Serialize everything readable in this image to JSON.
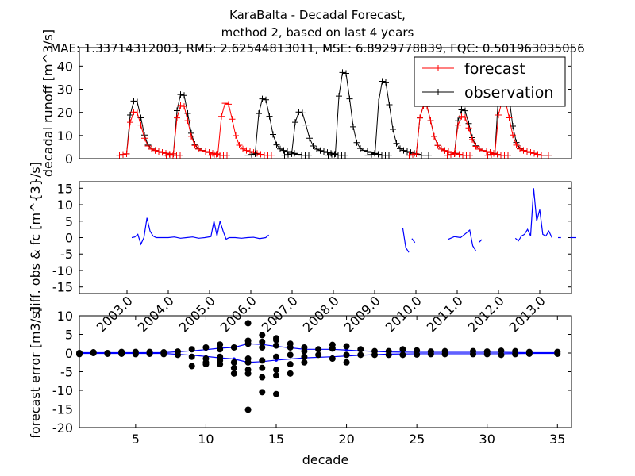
{
  "figure": {
    "title_lines": [
      "KaraBalta  - Decadal Forecast,",
      "method 2, based on last 4 years",
      "MAE: 1.33714312003,   RMS: 2.62544813011,   MSE: 6.8929778839,   FQC: 0.501963035056"
    ]
  },
  "chart_data": [
    {
      "type": "line",
      "panel": "top",
      "ylabel": "decadal runoff [m^3/s]",
      "ylim": [
        0,
        48
      ],
      "yticks": [
        0,
        10,
        20,
        30,
        40
      ],
      "xlim": [
        12.0,
        14.0
      ],
      "legend": {
        "placement": "top-right",
        "entries": [
          "forecast",
          "observation"
        ]
      },
      "series": [
        {
          "name": "forecast",
          "color": "#ff0000",
          "marker": "+",
          "values_note": "estimated",
          "x": [],
          "y": []
        },
        {
          "name": "observation",
          "color": "#000000",
          "marker": "+",
          "x": [],
          "y": []
        }
      ],
      "peaks_estimated": [
        {
          "x_year_pos": 12.12,
          "obs_peak": 20,
          "fc_peak": 15
        },
        {
          "x_year_pos": 12.34,
          "obs_peak": 23,
          "fc_peak": 18
        },
        {
          "x_year_pos": 12.55,
          "obs_peak": 0,
          "fc_peak": 19
        },
        {
          "x_year_pos": 12.77,
          "obs_peak": 21,
          "fc_peak": 0
        },
        {
          "x_year_pos": 12.96,
          "obs_peak": 15,
          "fc_peak": 0
        },
        {
          "x_year_pos": 13.14,
          "obs_peak": 33,
          "fc_peak": 0
        },
        {
          "x_year_pos": 13.33,
          "obs_peak": 29,
          "fc_peak": 0
        },
        {
          "x_year_pos": 13.52,
          "obs_peak": 18,
          "fc_peak": 18
        },
        {
          "x_year_pos": 13.71,
          "obs_peak": 16,
          "fc_peak": 13
        },
        {
          "x_year_pos": 13.89,
          "obs_peak": 34,
          "fc_peak": 20
        }
      ]
    },
    {
      "type": "line",
      "panel": "middle",
      "ylabel": "diff. obs & fc [m^{3}/s]",
      "ylim": [
        -17,
        17
      ],
      "yticks": [
        -15,
        -10,
        -5,
        0,
        5,
        10,
        15
      ],
      "series": [
        {
          "name": "",
          "color": "#0000ff",
          "segments": [
            [
              [
                0.07,
                0
              ],
              [
                0.075,
                0.2
              ],
              [
                0.08,
                1
              ],
              [
                0.085,
                -2
              ],
              [
                0.09,
                0
              ],
              [
                0.095,
                6
              ],
              [
                0.1,
                2
              ],
              [
                0.105,
                0.5
              ],
              [
                0.11,
                0
              ],
              [
                0.12,
                0
              ],
              [
                0.13,
                0
              ],
              [
                0.14,
                0.2
              ],
              [
                0.15,
                -0.2
              ],
              [
                0.16,
                0
              ],
              [
                0.17,
                0.2
              ],
              [
                0.18,
                -0.2
              ],
              [
                0.19,
                0
              ],
              [
                0.2,
                0.3
              ],
              [
                0.205,
                5
              ],
              [
                0.21,
                0.5
              ],
              [
                0.215,
                5
              ],
              [
                0.22,
                2
              ],
              [
                0.225,
                -0.5
              ],
              [
                0.23,
                0
              ],
              [
                0.24,
                0
              ],
              [
                0.25,
                -0.2
              ],
              [
                0.26,
                0
              ],
              [
                0.27,
                0.1
              ],
              [
                0.28,
                -0.3
              ],
              [
                0.29,
                0
              ],
              [
                0.295,
                0.8
              ]
            ],
            [
              [
                0.515,
                3
              ],
              [
                0.52,
                -3
              ],
              [
                0.525,
                -4.5
              ]
            ],
            [
              [
                0.53,
                -0.3
              ],
              [
                0.535,
                -1.5
              ]
            ],
            [
              [
                0.59,
                -0.5
              ],
              [
                0.6,
                0.3
              ],
              [
                0.61,
                0
              ],
              [
                0.62,
                1.5
              ],
              [
                0.625,
                2.3
              ],
              [
                0.63,
                -2.5
              ],
              [
                0.635,
                -4
              ]
            ],
            [
              [
                0.64,
                -1.5
              ],
              [
                0.645,
                -0.6
              ]
            ],
            [
              [
                0.7,
                -0.2
              ],
              [
                0.705,
                -1
              ],
              [
                0.71,
                0.5
              ],
              [
                0.715,
                1
              ],
              [
                0.72,
                2.5
              ],
              [
                0.725,
                0.5
              ],
              [
                0.73,
                15
              ],
              [
                0.735,
                5
              ],
              [
                0.74,
                8.5
              ],
              [
                0.745,
                1
              ],
              [
                0.75,
                0.5
              ],
              [
                0.755,
                2
              ],
              [
                0.76,
                0
              ]
            ],
            [
              [
                0.77,
                0
              ],
              [
                0.775,
                0
              ]
            ],
            [
              [
                0.79,
                0
              ],
              [
                0.8,
                0
              ]
            ]
          ]
        }
      ],
      "xtick_labels": [
        "2003.0",
        "2004.0",
        "2005.0",
        "2006.0",
        "2007.0",
        "2008.0",
        "2009.0",
        "2010.0",
        "2011.0",
        "2012.0",
        "2013.0"
      ]
    },
    {
      "type": "scatter",
      "panel": "bottom",
      "xlabel": "decade",
      "ylabel": "forecast error [m3/s]",
      "xlim": [
        1,
        36
      ],
      "ylim": [
        -20,
        10
      ],
      "xticks": [
        5,
        10,
        15,
        20,
        25,
        30,
        35
      ],
      "yticks": [
        -20,
        -15,
        -10,
        -5,
        0,
        5,
        10
      ],
      "points": [
        [
          1,
          0
        ],
        [
          1,
          -0.3
        ],
        [
          2,
          0
        ],
        [
          2,
          0.2
        ],
        [
          3,
          0
        ],
        [
          3,
          -0.2
        ],
        [
          4,
          0.3
        ],
        [
          4,
          -0.2
        ],
        [
          5,
          0.3
        ],
        [
          5,
          -0.3
        ],
        [
          6,
          0.3
        ],
        [
          6,
          -0.2
        ],
        [
          7,
          0.2
        ],
        [
          7,
          -0.3
        ],
        [
          8,
          0.4
        ],
        [
          8,
          -0.5
        ],
        [
          9,
          1
        ],
        [
          9,
          -1
        ],
        [
          9,
          -3.5
        ],
        [
          10,
          1.5
        ],
        [
          10,
          -1.5
        ],
        [
          10,
          -2.5
        ],
        [
          10,
          -3
        ],
        [
          11,
          2.3
        ],
        [
          11,
          1
        ],
        [
          11,
          -1
        ],
        [
          11,
          -2
        ],
        [
          11,
          -3
        ],
        [
          12,
          1.5
        ],
        [
          12,
          -2.5
        ],
        [
          12,
          -4
        ],
        [
          12,
          -5.5
        ],
        [
          13,
          8
        ],
        [
          13,
          3.3
        ],
        [
          13,
          2.5
        ],
        [
          13,
          -1.5
        ],
        [
          13,
          -2.5
        ],
        [
          13,
          -4.5
        ],
        [
          13,
          -5.5
        ],
        [
          13,
          -15.2
        ],
        [
          14,
          4.8
        ],
        [
          14,
          3
        ],
        [
          14,
          1.5
        ],
        [
          14,
          -2
        ],
        [
          14,
          -4
        ],
        [
          14,
          -6.5
        ],
        [
          14,
          -10.5
        ],
        [
          15,
          4
        ],
        [
          15,
          3.5
        ],
        [
          15,
          2
        ],
        [
          15,
          -1
        ],
        [
          15,
          -4.5
        ],
        [
          15,
          -6
        ],
        [
          15,
          -11
        ],
        [
          16,
          2.5
        ],
        [
          16,
          1.5
        ],
        [
          16,
          -0.5
        ],
        [
          16,
          -3
        ],
        [
          16,
          -5.5
        ],
        [
          17,
          1.5
        ],
        [
          17,
          0.5
        ],
        [
          17,
          -1
        ],
        [
          17,
          -2.5
        ],
        [
          18,
          1
        ],
        [
          18,
          -0.5
        ],
        [
          19,
          2.2
        ],
        [
          19,
          1.2
        ],
        [
          19,
          -1.5
        ],
        [
          20,
          1.8
        ],
        [
          20,
          -0.5
        ],
        [
          20,
          -2.5
        ],
        [
          21,
          1
        ],
        [
          21,
          -0.5
        ],
        [
          22,
          0.5
        ],
        [
          22,
          -0.5
        ],
        [
          23,
          0.5
        ],
        [
          23,
          -0.5
        ],
        [
          24,
          1
        ],
        [
          24,
          -0.5
        ],
        [
          25,
          0.7
        ],
        [
          25,
          -0.4
        ],
        [
          26,
          0.4
        ],
        [
          26,
          -0.3
        ],
        [
          27,
          0.5
        ],
        [
          27,
          -0.3
        ],
        [
          29,
          0.5
        ],
        [
          29,
          -0.3
        ],
        [
          30,
          0.4
        ],
        [
          30,
          -0.3
        ],
        [
          31,
          0.6
        ],
        [
          31,
          -0.5
        ],
        [
          32,
          0.5
        ],
        [
          32,
          -0.3
        ],
        [
          33,
          0.3
        ],
        [
          33,
          -0.2
        ],
        [
          35,
          0.3
        ],
        [
          35,
          -0.2
        ]
      ],
      "envelope_upper": [
        [
          1,
          0.1
        ],
        [
          3,
          0.1
        ],
        [
          5,
          0.1
        ],
        [
          7,
          0.1
        ],
        [
          9,
          0.6
        ],
        [
          10,
          0.9
        ],
        [
          11,
          1.3
        ],
        [
          12,
          1.5
        ],
        [
          13,
          2.5
        ],
        [
          14,
          2.3
        ],
        [
          15,
          1.8
        ],
        [
          17,
          1
        ],
        [
          19,
          1
        ],
        [
          20,
          0.8
        ],
        [
          21,
          0.6
        ],
        [
          23,
          0.3
        ],
        [
          25,
          0.2
        ],
        [
          27,
          0.2
        ],
        [
          29,
          0.2
        ],
        [
          31,
          0.2
        ],
        [
          33,
          0.1
        ],
        [
          35,
          0.1
        ]
      ],
      "envelope_lower": [
        [
          1,
          -0.1
        ],
        [
          3,
          -0.1
        ],
        [
          5,
          -0.1
        ],
        [
          7,
          -0.1
        ],
        [
          9,
          -0.6
        ],
        [
          10,
          -0.9
        ],
        [
          11,
          -1.3
        ],
        [
          12,
          -1.6
        ],
        [
          13,
          -2.5
        ],
        [
          14,
          -2.3
        ],
        [
          15,
          -1.9
        ],
        [
          17,
          -1.3
        ],
        [
          19,
          -1
        ],
        [
          20,
          -0.8
        ],
        [
          21,
          -0.6
        ],
        [
          23,
          -0.3
        ],
        [
          25,
          -0.2
        ],
        [
          27,
          -0.2
        ],
        [
          29,
          -0.2
        ],
        [
          31,
          -0.2
        ],
        [
          33,
          -0.1
        ],
        [
          35,
          -0.1
        ]
      ]
    }
  ]
}
